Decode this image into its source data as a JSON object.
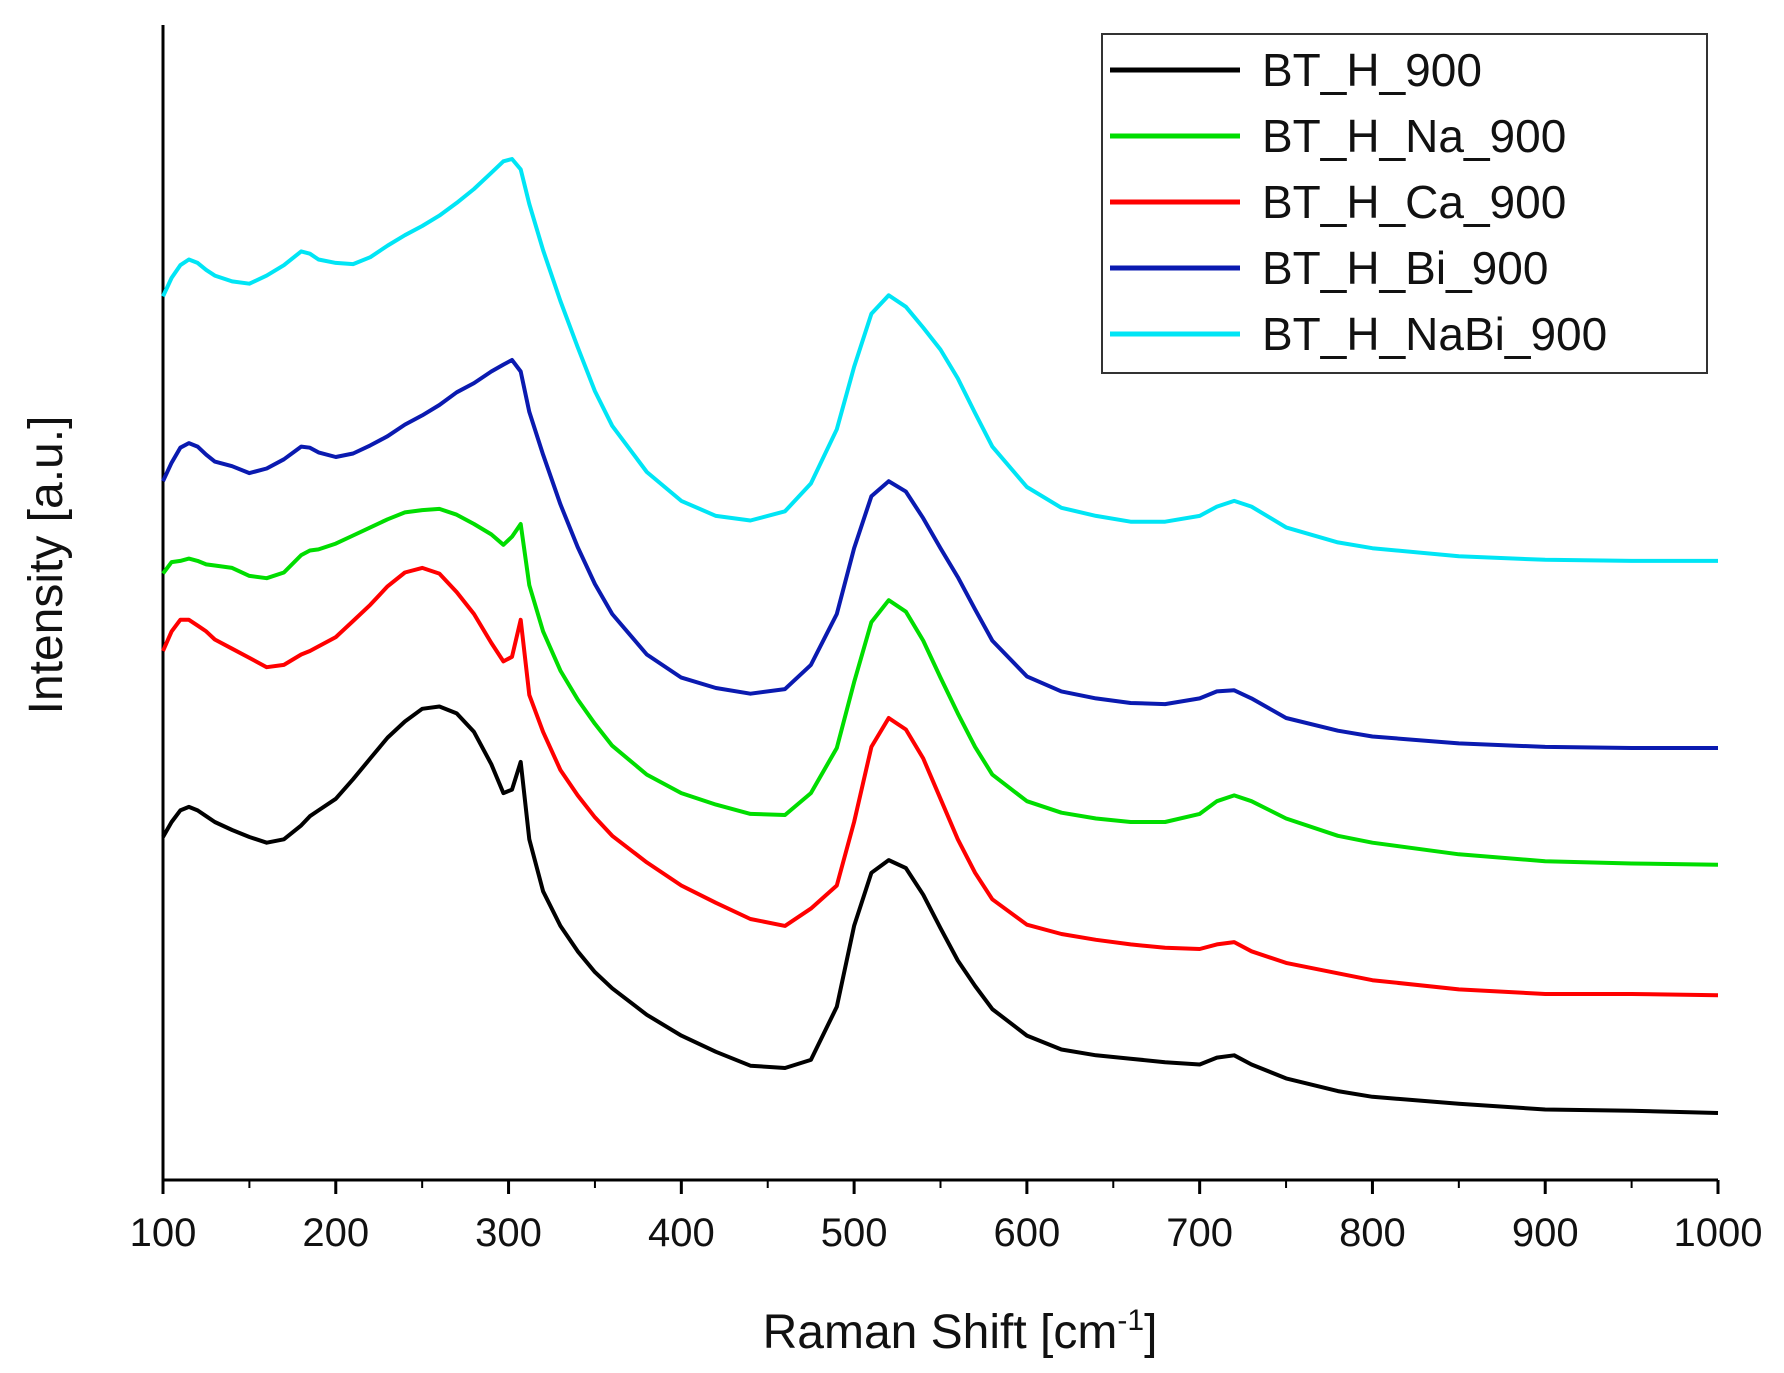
{
  "chart_data": {
    "type": "line",
    "title": "",
    "xlabel": "Raman Shift [cm",
    "xlabel_sup": "-1",
    "xlabel_end": "]",
    "ylabel": "Intensity [a.u.]",
    "xlim": [
      100,
      1000
    ],
    "ylim": [
      0,
      100
    ],
    "x_ticks": [
      100,
      200,
      300,
      400,
      500,
      600,
      700,
      800,
      900,
      1000
    ],
    "x_tick_labels": [
      "100",
      "200",
      "300",
      "400",
      "500",
      "600",
      "700",
      "800",
      "900",
      "1000"
    ],
    "y_ticks_shown": false,
    "legend_position": "top-right",
    "grid": false,
    "x": [
      100,
      105,
      110,
      115,
      120,
      125,
      130,
      140,
      150,
      160,
      170,
      180,
      185,
      190,
      200,
      210,
      220,
      230,
      240,
      250,
      260,
      270,
      280,
      290,
      297,
      302,
      307,
      312,
      320,
      330,
      340,
      350,
      360,
      380,
      400,
      420,
      440,
      460,
      475,
      490,
      500,
      510,
      520,
      530,
      540,
      550,
      560,
      570,
      580,
      600,
      620,
      640,
      660,
      680,
      700,
      710,
      720,
      730,
      750,
      780,
      800,
      850,
      900,
      950,
      1000
    ],
    "series": [
      {
        "name": "BT_H_900",
        "color": "#000000",
        "values": [
          29.7,
          31.0,
          32.0,
          32.3,
          32.0,
          31.5,
          31.0,
          30.3,
          29.7,
          29.2,
          29.5,
          30.7,
          31.5,
          32.0,
          33.0,
          34.7,
          36.5,
          38.3,
          39.7,
          40.8,
          41.0,
          40.4,
          38.8,
          36.0,
          33.5,
          33.8,
          36.2,
          29.5,
          25.0,
          22.0,
          19.8,
          18.0,
          16.6,
          14.3,
          12.5,
          11.1,
          9.9,
          9.7,
          10.4,
          15.0,
          22.0,
          26.6,
          27.7,
          27.0,
          24.7,
          21.8,
          19.0,
          16.8,
          14.8,
          12.5,
          11.3,
          10.8,
          10.5,
          10.2,
          10.0,
          10.6,
          10.8,
          10.0,
          8.8,
          7.7,
          7.2,
          6.6,
          6.1,
          6.0,
          5.8
        ]
      },
      {
        "name": "BT_H_Ca_900",
        "color": "#ff0000",
        "values": [
          45.8,
          47.5,
          48.5,
          48.5,
          48.0,
          47.5,
          46.8,
          46.0,
          45.2,
          44.4,
          44.6,
          45.5,
          45.8,
          46.2,
          47.0,
          48.4,
          49.8,
          51.4,
          52.6,
          53.0,
          52.5,
          50.9,
          49.0,
          46.5,
          44.9,
          45.3,
          48.5,
          42.0,
          38.8,
          35.5,
          33.3,
          31.4,
          29.8,
          27.5,
          25.5,
          24.0,
          22.6,
          22.0,
          23.5,
          25.5,
          31.0,
          37.5,
          40.0,
          39.0,
          36.5,
          33.0,
          29.5,
          26.6,
          24.3,
          22.1,
          21.3,
          20.8,
          20.4,
          20.1,
          20.0,
          20.4,
          20.6,
          19.8,
          18.8,
          17.9,
          17.3,
          16.5,
          16.1,
          16.1,
          16.0
        ]
      },
      {
        "name": "BT_H_Na_900",
        "color": "#00dd00",
        "values": [
          52.5,
          53.5,
          53.6,
          53.8,
          53.6,
          53.3,
          53.2,
          53.0,
          52.3,
          52.1,
          52.6,
          54.1,
          54.5,
          54.6,
          55.1,
          55.8,
          56.5,
          57.2,
          57.8,
          58.0,
          58.1,
          57.6,
          56.8,
          55.9,
          55.0,
          55.7,
          56.8,
          51.5,
          47.5,
          44.1,
          41.6,
          39.5,
          37.6,
          35.1,
          33.5,
          32.5,
          31.7,
          31.6,
          33.5,
          37.4,
          43.1,
          48.3,
          50.2,
          49.2,
          46.7,
          43.5,
          40.4,
          37.5,
          35.1,
          32.8,
          31.8,
          31.3,
          31.0,
          31.0,
          31.7,
          32.8,
          33.3,
          32.8,
          31.3,
          29.8,
          29.2,
          28.2,
          27.6,
          27.4,
          27.3
        ]
      },
      {
        "name": "BT_H_Bi_900",
        "color": "#0a1ab0",
        "values": [
          60.5,
          62.1,
          63.4,
          63.8,
          63.5,
          62.8,
          62.2,
          61.8,
          61.2,
          61.6,
          62.4,
          63.5,
          63.4,
          63.0,
          62.6,
          62.9,
          63.6,
          64.4,
          65.4,
          66.2,
          67.1,
          68.2,
          69.0,
          70.0,
          70.6,
          71.0,
          70.0,
          66.5,
          62.8,
          58.5,
          54.8,
          51.6,
          49.0,
          45.5,
          43.5,
          42.6,
          42.1,
          42.5,
          44.6,
          49.0,
          54.7,
          59.2,
          60.5,
          59.6,
          57.3,
          54.7,
          52.2,
          49.4,
          46.7,
          43.6,
          42.3,
          41.7,
          41.3,
          41.2,
          41.7,
          42.3,
          42.4,
          41.7,
          40.0,
          38.9,
          38.4,
          37.8,
          37.5,
          37.4,
          37.4
        ]
      },
      {
        "name": "BT_H_NaBi_900",
        "color": "#00e5f5",
        "values": [
          76.5,
          78.1,
          79.2,
          79.7,
          79.4,
          78.8,
          78.3,
          77.8,
          77.6,
          78.3,
          79.2,
          80.4,
          80.2,
          79.7,
          79.4,
          79.3,
          79.9,
          80.9,
          81.8,
          82.6,
          83.5,
          84.6,
          85.8,
          87.2,
          88.2,
          88.4,
          87.5,
          84.5,
          80.5,
          76.1,
          72.1,
          68.3,
          65.3,
          61.3,
          58.8,
          57.5,
          57.1,
          57.9,
          60.3,
          65.0,
          70.4,
          75.0,
          76.6,
          75.6,
          73.8,
          71.9,
          69.4,
          66.4,
          63.5,
          60.0,
          58.2,
          57.5,
          57.0,
          57.0,
          57.5,
          58.3,
          58.8,
          58.3,
          56.5,
          55.2,
          54.7,
          54.0,
          53.7,
          53.6,
          53.6
        ]
      }
    ]
  },
  "legend": {
    "entries": [
      {
        "label": "BT_H_900",
        "color": "#000000"
      },
      {
        "label": "BT_H_Na_900",
        "color": "#00dd00"
      },
      {
        "label": "BT_H_Ca_900",
        "color": "#ff0000"
      },
      {
        "label": "BT_H_Bi_900",
        "color": "#0a1ab0"
      },
      {
        "label": "BT_H_NaBi_900",
        "color": "#00e5f5"
      }
    ]
  }
}
